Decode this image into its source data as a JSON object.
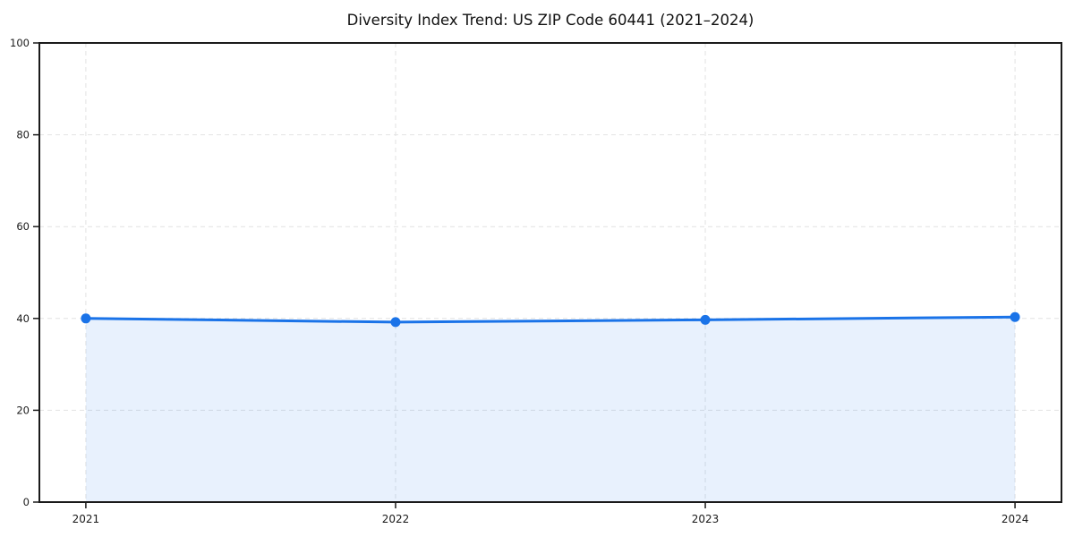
{
  "chart_data": {
    "type": "line",
    "title": "Diversity Index Trend: US ZIP Code 60441 (2021–2024)",
    "xlabel": "",
    "ylabel": "",
    "x": [
      2021,
      2022,
      2023,
      2024
    ],
    "x_tick_labels": [
      "2021",
      "2022",
      "2023",
      "2024"
    ],
    "series": [
      {
        "name": "Diversity Index",
        "values": [
          40.0,
          39.2,
          39.7,
          40.3
        ]
      }
    ],
    "y_ticks": [
      0,
      20,
      40,
      60,
      80,
      100
    ],
    "xlim": [
      2020.85,
      2024.15
    ],
    "ylim": [
      0,
      100
    ],
    "grid": true,
    "grid_style": "dashed",
    "legend_position": "none",
    "area_fill": true,
    "colors": {
      "line": "#1a73e8",
      "marker": "#1a73e8",
      "fill": "#1a73e8",
      "fill_opacity": 0.1,
      "grid": "#e2e2e2",
      "axis": "#1a1a1a",
      "text": "#1a1a1a",
      "background": "#ffffff"
    }
  }
}
